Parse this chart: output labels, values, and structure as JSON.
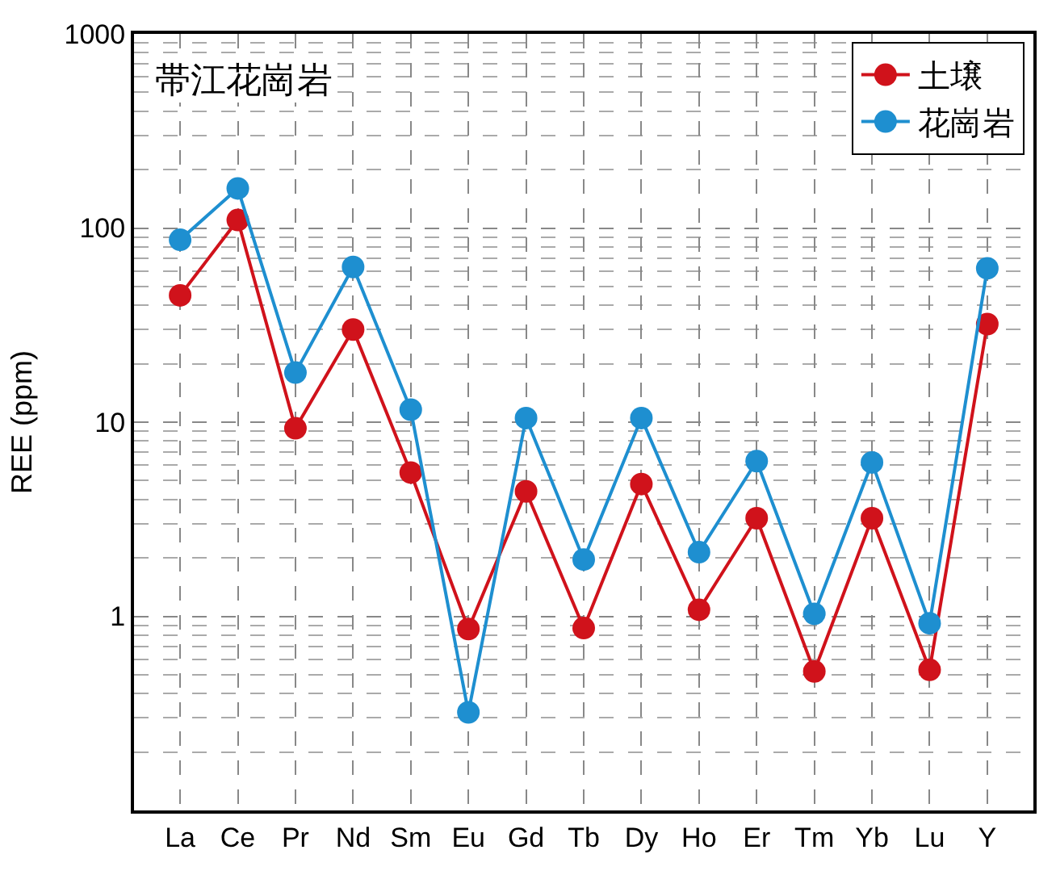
{
  "chart_data": {
    "type": "line",
    "title": "帯江花崗岩",
    "ylabel": "REE (ppm)",
    "categories": [
      "La",
      "Ce",
      "Pr",
      "Nd",
      "Sm",
      "Eu",
      "Gd",
      "Tb",
      "Dy",
      "Ho",
      "Er",
      "Tm",
      "Yb",
      "Lu",
      "Y"
    ],
    "series": [
      {
        "name": "土壌",
        "color": "#d0121b",
        "values": [
          45,
          110,
          9.3,
          30,
          5.5,
          0.86,
          4.4,
          0.87,
          4.8,
          1.08,
          3.2,
          0.52,
          3.2,
          0.53,
          32
        ]
      },
      {
        "name": "花崗岩",
        "color": "#1e8fd0",
        "values": [
          87,
          160,
          18,
          63,
          11.6,
          0.32,
          10.5,
          1.96,
          10.5,
          2.14,
          6.3,
          1.03,
          6.2,
          0.92,
          62
        ]
      }
    ],
    "log": true,
    "ylim": [
      0.1,
      1000
    ],
    "yticks": [
      1,
      10,
      100,
      1000
    ],
    "grid": true,
    "legend": "top right",
    "marker": "circle",
    "line_style": "solid"
  }
}
